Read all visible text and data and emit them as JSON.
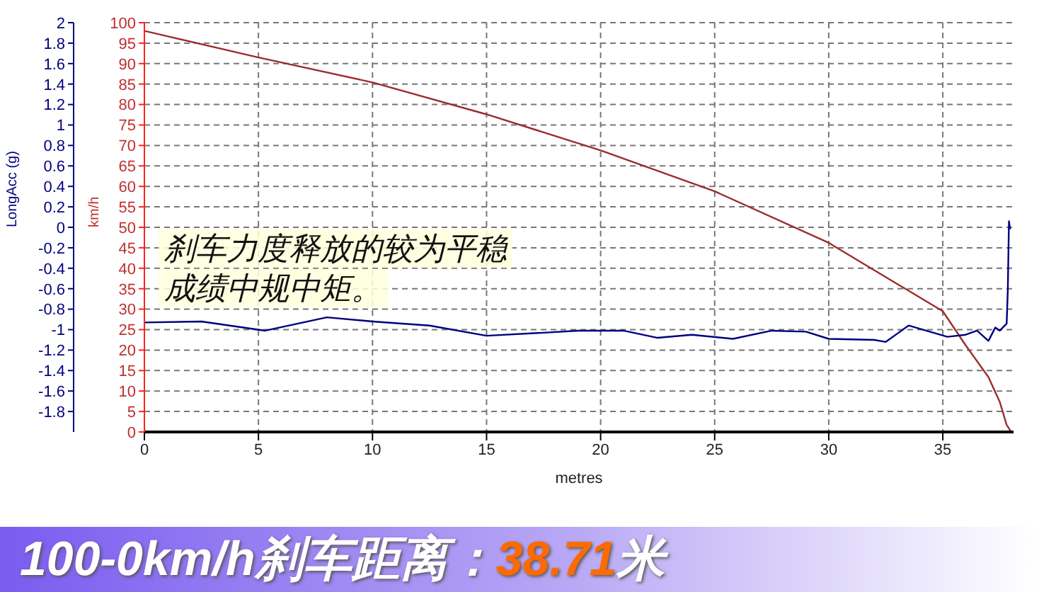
{
  "chart_data": {
    "type": "line",
    "title": "100-0km/h刹车距离：38.71米",
    "xlabel": "metres",
    "ylabel": "km/h",
    "y2label": "LongAcc (g)",
    "annotations": [
      "刹车力度释放的较为平稳",
      "成绩中规中矩。"
    ],
    "xlim": [
      0,
      38.1
    ],
    "xticks": [
      0,
      5,
      10,
      15,
      20,
      25,
      30,
      35
    ],
    "ylim": [
      0,
      100
    ],
    "yticks": [
      0,
      5,
      10,
      15,
      20,
      25,
      30,
      35,
      40,
      45,
      50,
      55,
      60,
      65,
      70,
      75,
      80,
      85,
      90,
      95,
      100
    ],
    "y2lim": [
      -2,
      2
    ],
    "y2ticks": [
      -1.8,
      -1.6,
      -1.4,
      -1.2,
      -1,
      -0.8,
      -0.6,
      -0.4,
      -0.2,
      0,
      0.2,
      0.4,
      0.6,
      0.8,
      1,
      1.2,
      1.4,
      1.6,
      1.8,
      2
    ],
    "grid": true,
    "legend": false,
    "line_style": "solid",
    "marker": "none",
    "series": [
      {
        "color": "#9b2d2d",
        "x": [
          0,
          5,
          10,
          15,
          20,
          25,
          30,
          33.5,
          35,
          36,
          37,
          37.5,
          37.8,
          38
        ],
        "values": [
          98,
          91.5,
          85.4,
          77.6,
          68.8,
          58.8,
          46.2,
          34.5,
          29.5,
          21.2,
          13.4,
          7.3,
          1.7,
          0
        ]
      },
      {
        "color": "#000080",
        "axis": "y2",
        "x": [
          0,
          2.5,
          5.3,
          8,
          10,
          12.5,
          15,
          17.5,
          19,
          20,
          21,
          22.5,
          24,
          25.8,
          27.5,
          29,
          30,
          32,
          32.5,
          33.5,
          35.2,
          36,
          36.5,
          37,
          37.3,
          37.5,
          37.8,
          37.85,
          37.9,
          37.95
        ],
        "values": [
          -0.93,
          -0.92,
          -1.01,
          -0.88,
          -0.92,
          -0.96,
          -1.06,
          -1.03,
          -1.01,
          -1.01,
          -1.01,
          -1.08,
          -1.05,
          -1.09,
          -1.01,
          -1.02,
          -1.09,
          -1.1,
          -1.12,
          -0.96,
          -1.07,
          -1.05,
          -1.01,
          -1.11,
          -0.98,
          -1.01,
          -0.94,
          -0.61,
          0.06,
          -0.02
        ]
      }
    ]
  }
}
